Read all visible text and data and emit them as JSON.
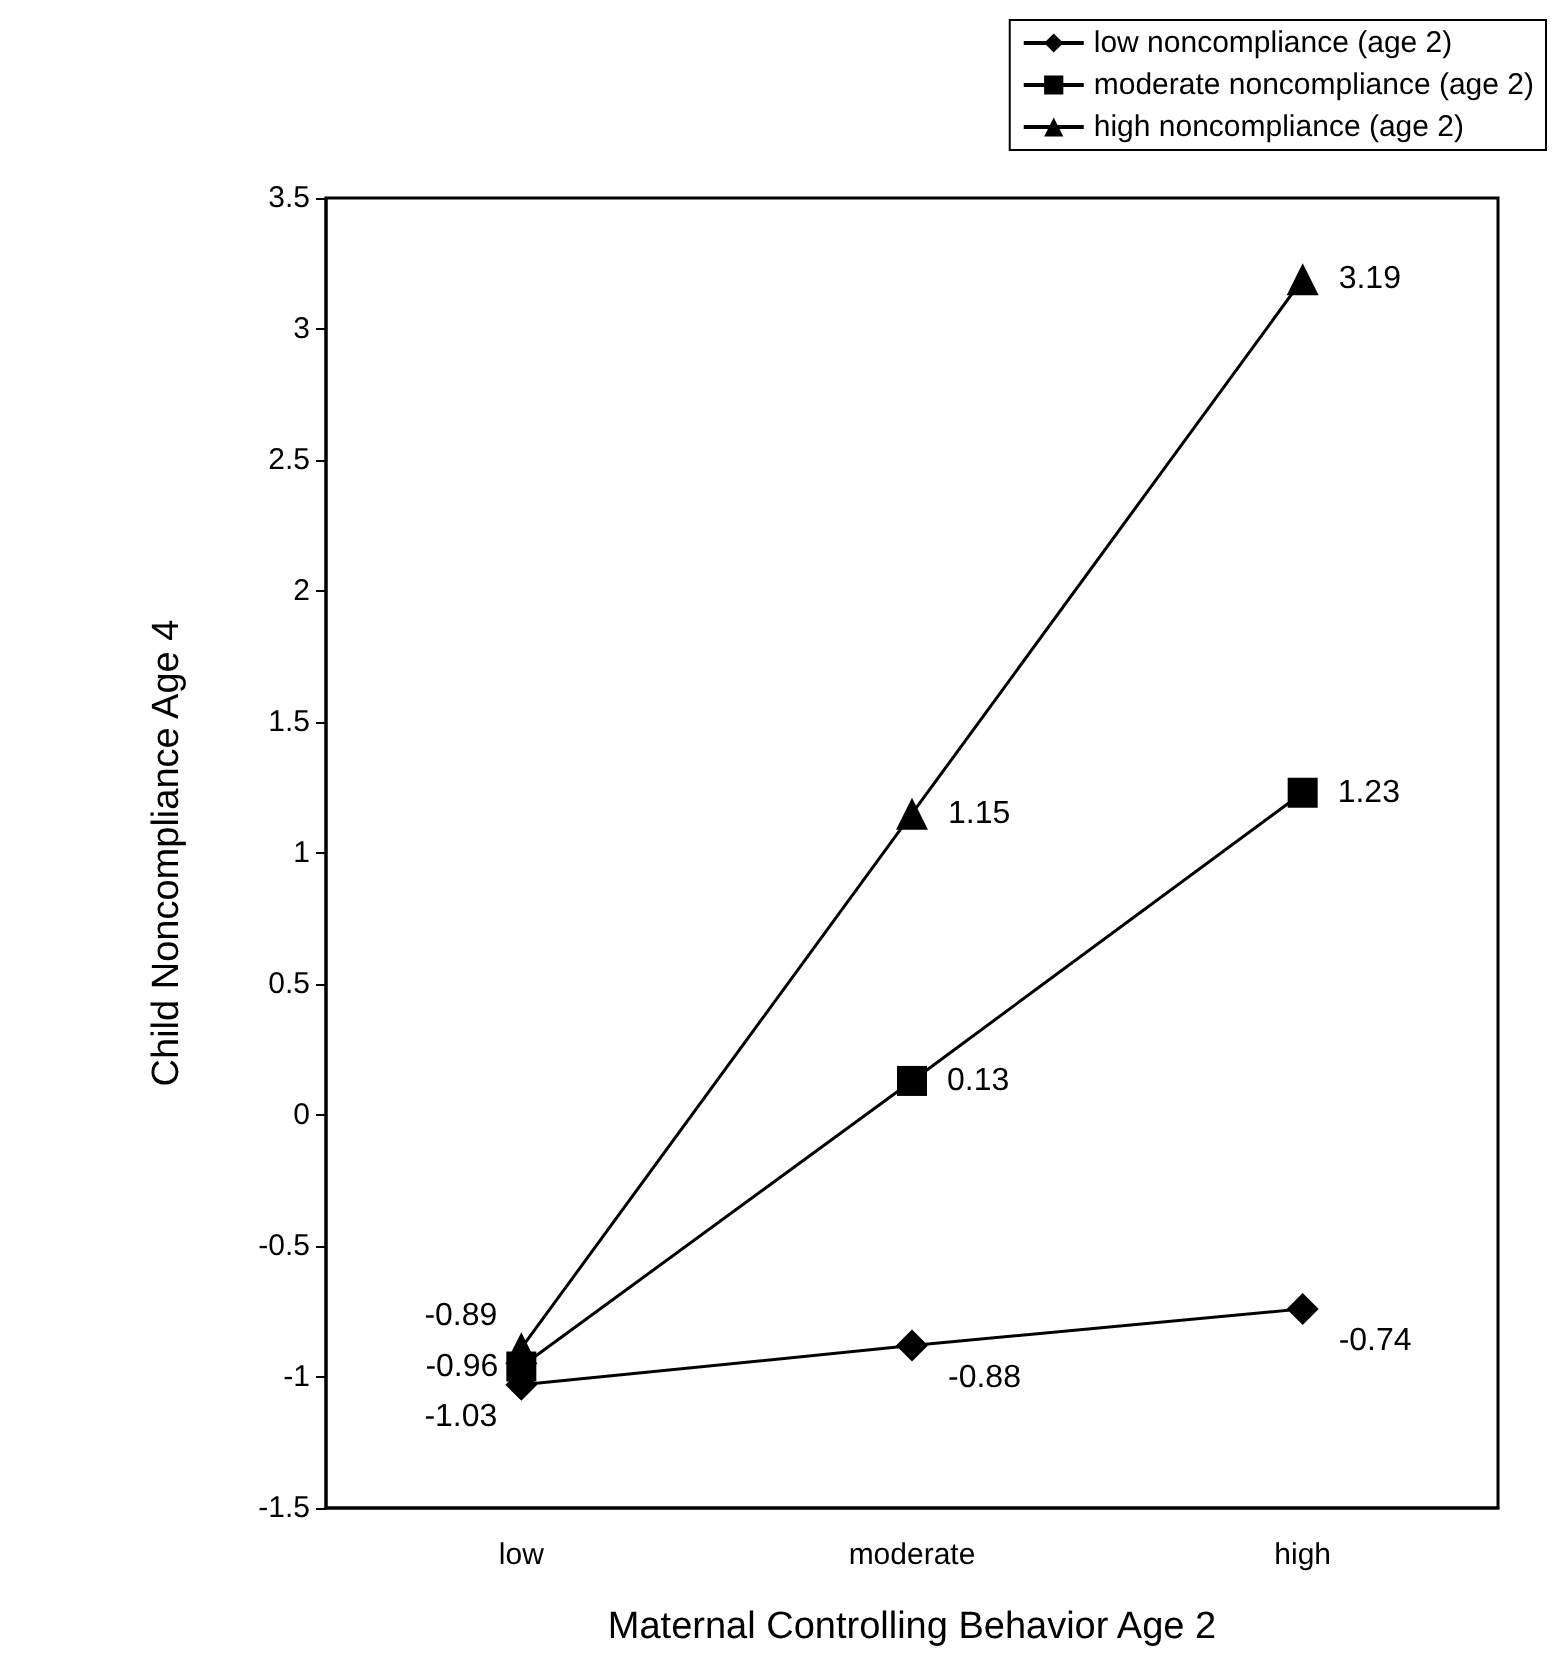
{
  "chart_data": {
    "type": "line",
    "xlabel": "Maternal Controlling Behavior Age 2",
    "ylabel": "Child Noncompliance Age 4",
    "categories": [
      "low",
      "moderate",
      "high"
    ],
    "series": [
      {
        "name": "low noncompliance (age 2)",
        "color": "#000000",
        "marker": "diamond",
        "values": [
          -1.03,
          -0.88,
          -0.74
        ]
      },
      {
        "name": "moderate noncompliance (age 2)",
        "color": "#000000",
        "marker": "square",
        "values": [
          -0.96,
          0.13,
          1.23
        ]
      },
      {
        "name": "high noncompliance (age 2)",
        "color": "#000000",
        "marker": "triangle",
        "values": [
          -0.89,
          1.15,
          3.19
        ]
      }
    ],
    "ylim": [
      -1.5,
      3.5
    ],
    "yticks": [
      -1.5,
      -1,
      -0.5,
      0,
      0.5,
      1,
      1.5,
      2,
      2.5,
      3,
      3.5
    ],
    "grid": false,
    "legend": "top right",
    "data_labels": true,
    "line_style": "solid"
  }
}
